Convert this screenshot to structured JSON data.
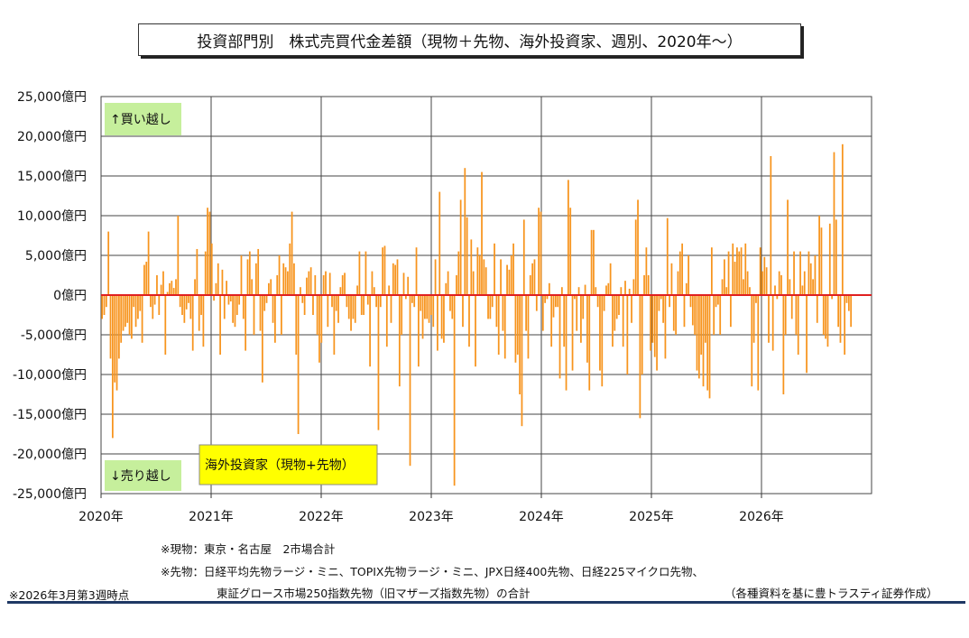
{
  "title": "投資部門別　株式売買代金差額（現物＋先物、海外投資家、週別、2020年～）",
  "notes": {
    "spot": "※現物：東京・名古屋　2市場合計",
    "futures_line1": "※先物：日経平均先物ラージ・ミニ、TOPIX先物ラージ・ミニ、JPX日経400先物、日経225マイクロ先物、",
    "futures_line2": "東証グロース市場250指数先物（旧マザーズ指数先物）の合計",
    "as_of": "※2026年3月第3週時点",
    "source": "（各種資料を基に豊トラスティ証券作成）"
  },
  "colors": {
    "bar": "#f7941d",
    "zero_line": "#e02020",
    "label_green": "#c6ef9c",
    "label_yellow": "#ffff00",
    "grid": "#444444"
  },
  "chart_data": {
    "type": "bar",
    "ylim": [
      -25000,
      25000
    ],
    "yticks": [
      25000,
      20000,
      15000,
      10000,
      5000,
      0,
      -5000,
      -10000,
      -15000,
      -20000,
      -25000
    ],
    "ytick_labels": [
      "25,000億円",
      "20,000億円",
      "15,000億円",
      "10,000億円",
      "5,000億円",
      "0億円",
      "-5,000億円",
      "-10,000億円",
      "-15,000億円",
      "-20,000億円",
      "-25,000億円"
    ],
    "xtick_labels": [
      "2020年",
      "2021年",
      "2022年",
      "2023年",
      "2024年",
      "2025年",
      "2026年"
    ],
    "xlim": [
      2020.0,
      2027.0
    ],
    "annotations": {
      "buy": "↑買い越し",
      "sell": "↓売り越し",
      "series_label": "海外投資家（現物+先物）"
    },
    "x_start": 2020.0,
    "weekly_values": [
      -3000,
      -2500,
      -1500,
      8000,
      -8000,
      -18000,
      -11000,
      -12000,
      -8000,
      -6000,
      -4500,
      -4000,
      -3500,
      -5000,
      -5500,
      -1500,
      -4000,
      -3000,
      -2000,
      -6000,
      3800,
      4200,
      8000,
      -1500,
      -3000,
      -1200,
      2500,
      -2500,
      1300,
      3000,
      -7500,
      400,
      1500,
      1800,
      900,
      2000,
      10000,
      -1500,
      -2500,
      -3500,
      -1800,
      -1000,
      -3000,
      -7000,
      2000,
      5800,
      -4500,
      -2500,
      -6500,
      5500,
      11000,
      10500,
      6500,
      -700,
      1500,
      4000,
      -7500,
      3200,
      -3000,
      1800,
      -1200,
      -800,
      -3500,
      -4000,
      -2500,
      -1200,
      5000,
      -3000,
      -7000,
      4500,
      5500,
      2000,
      -5000,
      4000,
      5800,
      -4500,
      -11000,
      -2000,
      -1000,
      1500,
      2000,
      -3500,
      -6000,
      2500,
      5000,
      -5000,
      4000,
      3500,
      3000,
      6500,
      10500,
      4000,
      -7500,
      -17500,
      1000,
      -1000,
      -2500,
      2200,
      3000,
      3500,
      -2500,
      2500,
      -5000,
      -8500,
      -6000,
      2500,
      3000,
      -4000,
      2800,
      -1500,
      -7500,
      -2000,
      -3500,
      1000,
      2500,
      2800,
      -1500,
      -3000,
      -4500,
      -3000,
      -3500,
      1200,
      5500,
      -2500,
      -2500,
      5500,
      -1200,
      -9000,
      3000,
      1000,
      -1500,
      -17000,
      -1500,
      6000,
      6200,
      -6500,
      1200,
      -3500,
      4000,
      3800,
      4500,
      -11500,
      -5000,
      2800,
      -500,
      2300,
      -21500,
      -1000,
      -1500,
      6000,
      -9000,
      -2000,
      -5500,
      -3000,
      -3000,
      -3500,
      -2500,
      -4000,
      4500,
      -7000,
      13000,
      -5500,
      -6000,
      1500,
      3000,
      -2000,
      -3000,
      -24000,
      2500,
      5500,
      12000,
      -4000,
      16000,
      9800,
      -6500,
      7000,
      3000,
      -9000,
      6000,
      5000,
      15500,
      4500,
      3500,
      -3000,
      -3000,
      -1500,
      6500,
      -4000,
      -7500,
      4500,
      -4500,
      -8000,
      3800,
      3200,
      5000,
      6500,
      -8500,
      -7500,
      -12500,
      -16500,
      9500,
      -4500,
      -8000,
      2500,
      4000,
      4500,
      -2000,
      11000,
      10500,
      -4500,
      -1000,
      -500,
      1500,
      -6500,
      -2800,
      -1500,
      -1500,
      -10500,
      1000,
      -6500,
      -12000,
      14500,
      11000,
      -9500,
      -500,
      -4500,
      1000,
      -6000,
      -3000,
      1300,
      -8500,
      -12000,
      8200,
      8200,
      1000,
      -1500,
      -9500,
      -11500,
      -2000,
      1200,
      1500,
      4000,
      -6500,
      -4500,
      -3000,
      -2500,
      1000,
      -6500,
      1800,
      -10000,
      800,
      -3500,
      2000,
      9500,
      12000,
      -15500,
      -10000,
      2500,
      6000,
      2500,
      -7000,
      -6000,
      -7800,
      -9500,
      -2000,
      -500,
      -3500,
      -8000,
      9700,
      -1500,
      4000,
      -4500,
      -5000,
      3000,
      5500,
      6500,
      -4000,
      1500,
      5000,
      -1500,
      -3800,
      -5000,
      -9500,
      -10500,
      -7500,
      -11500,
      -6000,
      -12000,
      -13000,
      6000,
      -5000,
      -1500,
      -1200,
      -5000,
      2000,
      4500,
      1000,
      5500,
      -4000,
      6500,
      4200,
      6000,
      5500,
      6000,
      2000,
      6500,
      3000,
      1000,
      -11500,
      -6000,
      -1000,
      -12000,
      6000,
      3000,
      4800,
      3500,
      -6000,
      17500,
      -7000,
      1200,
      -500,
      3000,
      2500,
      -12500,
      -5000,
      12000,
      2000,
      -3000,
      5500,
      -5000,
      -7500,
      5500,
      1200,
      3000,
      -9800,
      5500,
      4000,
      2000,
      5000,
      -3500,
      10000,
      8500,
      -5000,
      -5500,
      -6500,
      9000,
      -500,
      18000,
      9500,
      -4000,
      -6000,
      19000,
      -7500,
      -1000,
      -2000,
      -4000
    ]
  }
}
